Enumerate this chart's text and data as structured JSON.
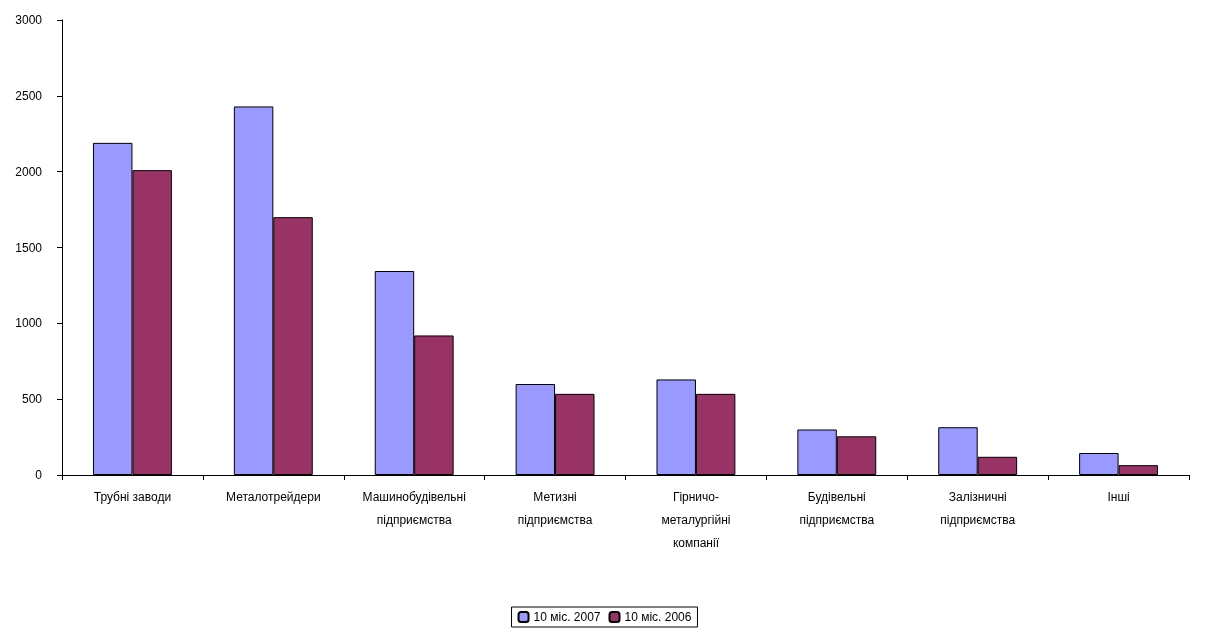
{
  "chart_data": {
    "type": "bar",
    "categories": [
      "Трубні заводи",
      "Металотрейдери",
      "Машинобудівельні підприємства",
      "Метизні підприємства",
      "Гірничо-металургійні компанії",
      "Будівельні підприємства",
      "Залізничні підприємства",
      "Інші"
    ],
    "series": [
      {
        "name": "10 міс. 2007",
        "color": "#9999ff",
        "values": [
          2190,
          2430,
          1345,
          600,
          630,
          300,
          315,
          145
        ]
      },
      {
        "name": "10 міс. 2006",
        "color": "#993366",
        "values": [
          2010,
          1700,
          920,
          535,
          535,
          255,
          120,
          65
        ]
      }
    ],
    "ylim": [
      0,
      3000
    ],
    "yticks": [
      0,
      500,
      1000,
      1500,
      2000,
      2500,
      3000
    ],
    "grid": false,
    "legend": "bottom"
  }
}
